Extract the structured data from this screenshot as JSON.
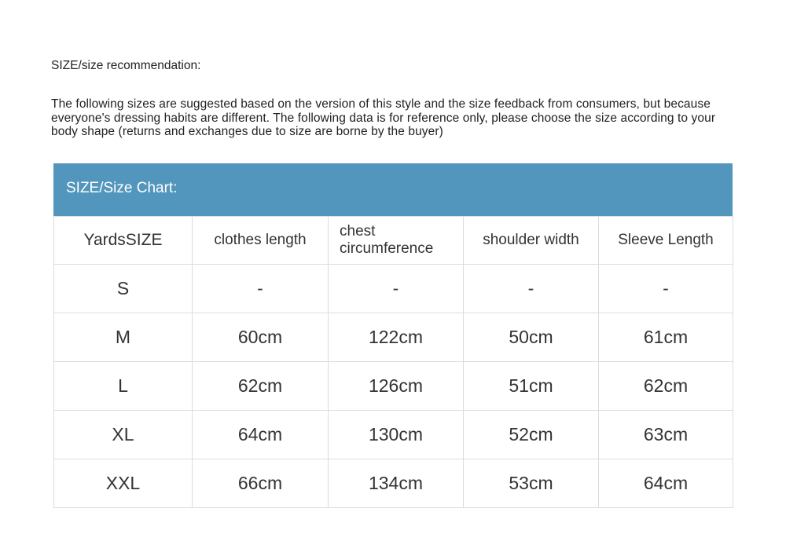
{
  "recommendation_title": "SIZE/size recommendation:",
  "intro_text": "The following sizes are suggested based on the version of this style and the size feedback from consumers, but because everyone's dressing habits are different. The following data is for reference only, please choose the size according to your body shape (returns and exchanges due to size are borne by the buyer)",
  "chart_title": "SIZE/Size Chart:",
  "colors": {
    "header_band": "#5396bd",
    "border": "#dcdcdc"
  },
  "headers": [
    "YardsSIZE",
    "clothes length",
    "chest circumference",
    "shoulder width",
    "Sleeve Length"
  ],
  "rows": [
    [
      "S",
      "-",
      "-",
      "-",
      "-"
    ],
    [
      "M",
      "60cm",
      "122cm",
      "50cm",
      "61cm"
    ],
    [
      "L",
      "62cm",
      "126cm",
      "51cm",
      "62cm"
    ],
    [
      "XL",
      "64cm",
      "130cm",
      "52cm",
      "63cm"
    ],
    [
      "XXL",
      "66cm",
      "134cm",
      "53cm",
      "64cm"
    ]
  ]
}
